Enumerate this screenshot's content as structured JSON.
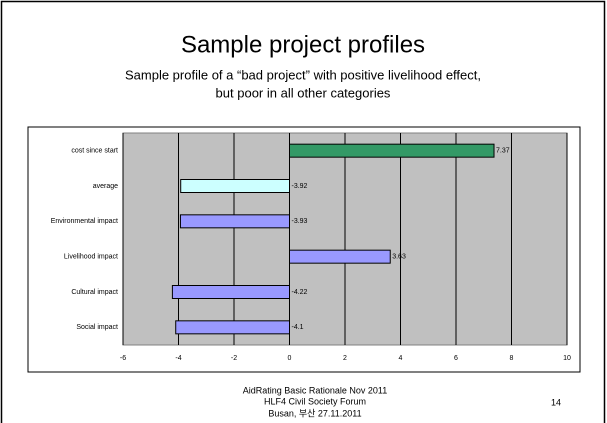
{
  "title": "Sample project profiles",
  "subtitle": [
    "Sample profile of a “bad project” with positive livelihood effect,",
    "but poor in all other categories"
  ],
  "chart_data": {
    "type": "hbar",
    "categories": [
      "cost since start",
      "average",
      "Environmental impact",
      "Livelihood impact",
      "Cultural impact",
      "Social impact"
    ],
    "values": [
      7.37,
      -3.92,
      -3.93,
      3.63,
      -4.22,
      -4.1
    ],
    "colors": [
      "#339966",
      "#ccffff",
      "#9999ff",
      "#9999ff",
      "#9999ff",
      "#9999ff"
    ],
    "xlim": [
      -6,
      10
    ],
    "xticks": [
      -6,
      -4,
      -2,
      0,
      2,
      4,
      6,
      8,
      10
    ],
    "grid": true,
    "plot_background": "#c0c0c0"
  },
  "footer": [
    "AidRating Basic Rationale Nov 2011",
    "HLF4 Civil Society Forum",
    "Busan, 부산 27.11.2011"
  ],
  "page_number": "14"
}
